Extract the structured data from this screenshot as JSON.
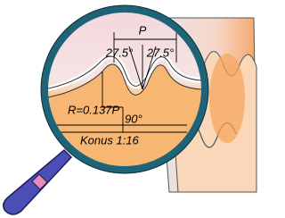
{
  "labels": {
    "pitch": "P",
    "flank_angle_left": "27.5°",
    "flank_angle_right": "27.5°",
    "radius": "R=0.137P",
    "angle": "90°",
    "taper": "Konus 1:16"
  }
}
